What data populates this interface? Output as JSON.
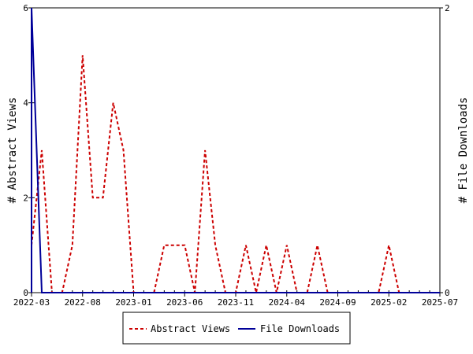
{
  "chart_data": {
    "type": "line",
    "title": "",
    "x_tick_labels": [
      "2022-03",
      "2022-08",
      "2023-01",
      "2023-06",
      "2023-11",
      "2024-04",
      "2024-09",
      "2025-02",
      "2025-07"
    ],
    "x_start": "2022-03",
    "x_end": "2025-07",
    "y_left": {
      "label": "# Abstract Views",
      "range": [
        0,
        6
      ],
      "ticks": [
        0,
        2,
        4,
        6
      ]
    },
    "y_right": {
      "label": "# File Downloads",
      "range": [
        0,
        2
      ],
      "ticks": [
        0,
        2
      ]
    },
    "legend_position": "bottom-center",
    "series": [
      {
        "name": "Abstract Views",
        "axis": "left",
        "color": "#cc0000",
        "style": "dashed",
        "points": [
          [
            "2022-03",
            1
          ],
          [
            "2022-04",
            3
          ],
          [
            "2022-05",
            0
          ],
          [
            "2022-06",
            0
          ],
          [
            "2022-07",
            1
          ],
          [
            "2022-08",
            5
          ],
          [
            "2022-09",
            2
          ],
          [
            "2022-10",
            2
          ],
          [
            "2022-11",
            4
          ],
          [
            "2022-12",
            3
          ],
          [
            "2023-01",
            0
          ],
          [
            "2023-02",
            0
          ],
          [
            "2023-03",
            0
          ],
          [
            "2023-04",
            1
          ],
          [
            "2023-05",
            1
          ],
          [
            "2023-06",
            1
          ],
          [
            "2023-07",
            0
          ],
          [
            "2023-08",
            3
          ],
          [
            "2023-09",
            1
          ],
          [
            "2023-10",
            0
          ],
          [
            "2023-11",
            0
          ],
          [
            "2023-12",
            1
          ],
          [
            "2024-01",
            0
          ],
          [
            "2024-02",
            1
          ],
          [
            "2024-03",
            0
          ],
          [
            "2024-04",
            1
          ],
          [
            "2024-05",
            0
          ],
          [
            "2024-06",
            0
          ],
          [
            "2024-07",
            1
          ],
          [
            "2024-08",
            0
          ],
          [
            "2024-09",
            0
          ],
          [
            "2024-10",
            0
          ],
          [
            "2024-11",
            0
          ],
          [
            "2024-12",
            0
          ],
          [
            "2025-01",
            0
          ],
          [
            "2025-02",
            1
          ],
          [
            "2025-03",
            0
          ],
          [
            "2025-04",
            0
          ],
          [
            "2025-05",
            0
          ],
          [
            "2025-06",
            0
          ],
          [
            "2025-07",
            0
          ]
        ]
      },
      {
        "name": "File Downloads",
        "axis": "right",
        "color": "#000099",
        "style": "solid",
        "points": [
          [
            "2022-02",
            0
          ],
          [
            "2022-03",
            2
          ],
          [
            "2022-04",
            0
          ],
          [
            "2022-05",
            0
          ],
          [
            "2025-07",
            0
          ]
        ]
      }
    ]
  }
}
